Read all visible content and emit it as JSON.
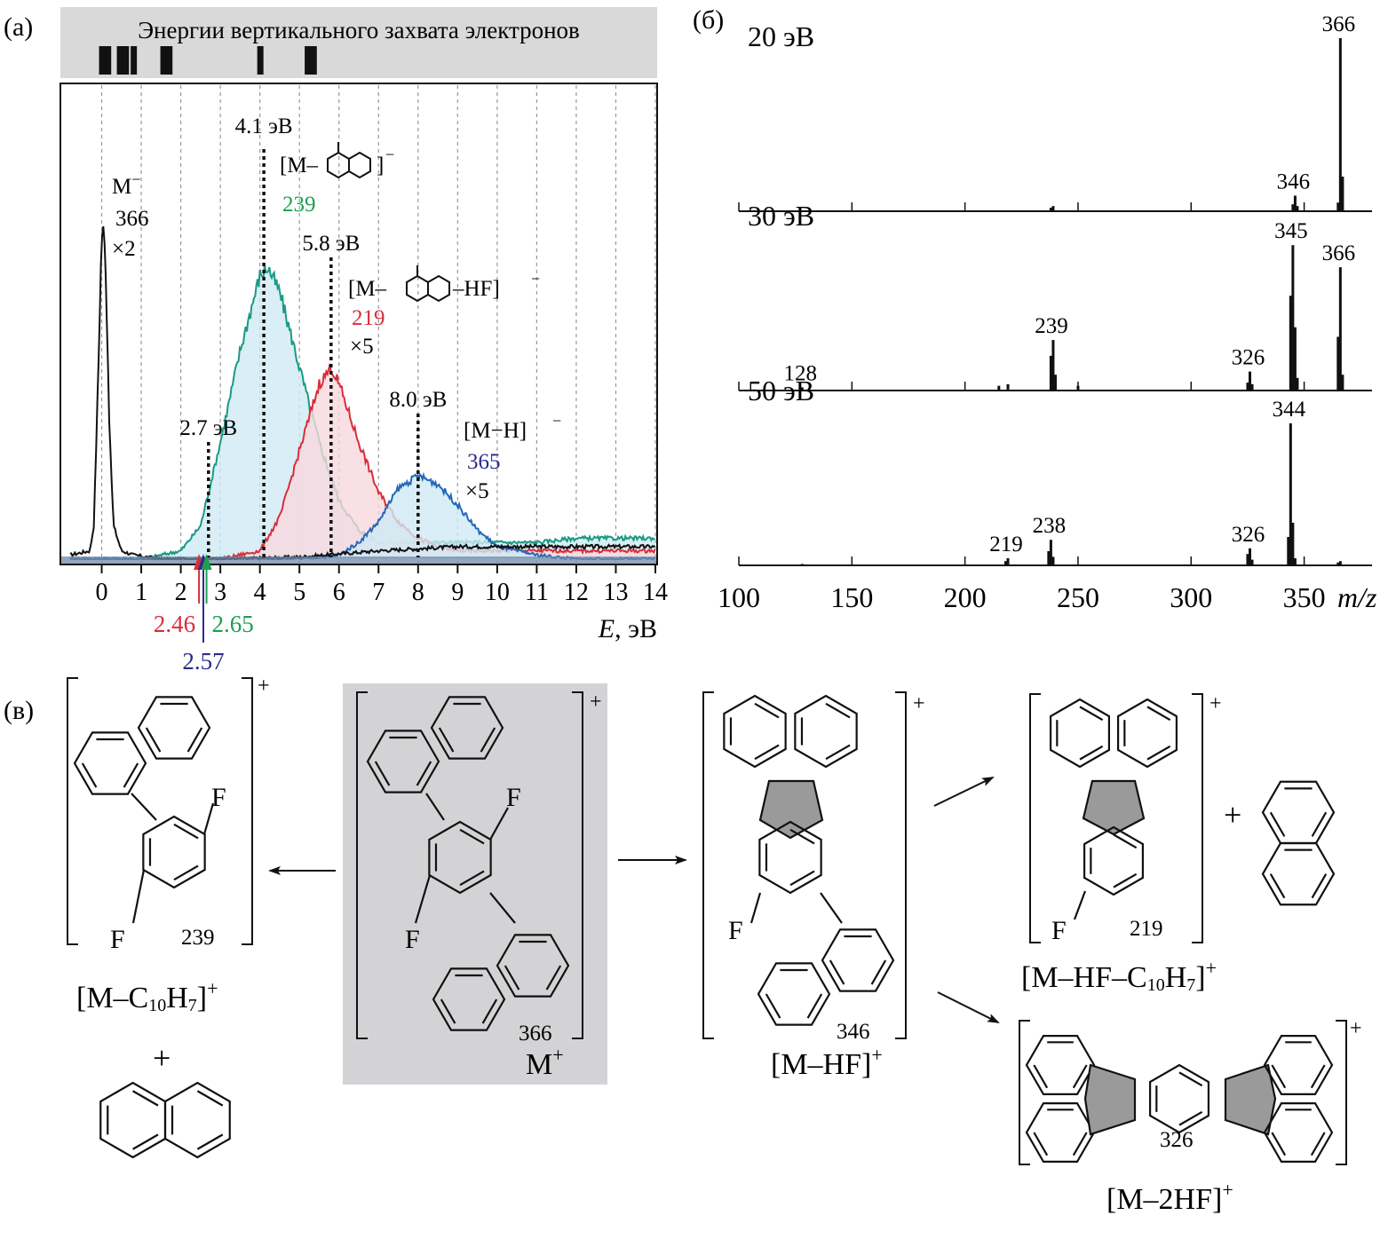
{
  "panel_labels": {
    "a": "(а)",
    "b": "(б)",
    "c": "(в)"
  },
  "colors": {
    "black": "#111111",
    "green": "#1a9a82",
    "green_label": "#1aa050",
    "red": "#d92d3a",
    "blue": "#2468b8",
    "navy": "#2c2a8c",
    "cyan_fill": "#cfeaf4",
    "pink_fill": "#f6d8de",
    "grey_band": "#d9d9d9",
    "grey_fill": "#c9c9c9"
  },
  "chart_data": [
    {
      "type": "line",
      "panel": "(а)",
      "header": "Энергии вертикального захвата электронов",
      "vae_bars": [
        0,
        0.15,
        0.45,
        0.6,
        0.8,
        1.55,
        1.7,
        4.0,
        5.2,
        5.35
      ],
      "xlabel": "E, эВ",
      "xlabel_italic": "E",
      "xlabel_unit": ", эВ",
      "xlim": [
        -1.0,
        14.0
      ],
      "xticks": [
        "0",
        "1",
        "2",
        "3",
        "4",
        "5",
        "6",
        "7",
        "8",
        "9",
        "10",
        "11",
        "12",
        "13",
        "14"
      ],
      "grid": "vertical dashed",
      "series": [
        {
          "name": "M⁻",
          "mz": "366",
          "scale": "×2",
          "color": "#111111",
          "x": [
            -0.8,
            -0.3,
            -0.2,
            -0.1,
            0.0,
            0.05,
            0.1,
            0.2,
            0.3,
            0.5,
            0.8,
            1.5,
            3,
            5,
            7,
            9,
            11,
            14
          ],
          "y": [
            0.01,
            0.02,
            0.08,
            0.4,
            0.78,
            0.79,
            0.7,
            0.3,
            0.08,
            0.02,
            0.01,
            0.0,
            0.0,
            0.005,
            0.02,
            0.03,
            0.03,
            0.03
          ]
        },
        {
          "name": "[M−C10H7]⁻",
          "mz": "239",
          "color": "#1a9a82",
          "x": [
            -0.8,
            1,
            2,
            2.5,
            3,
            3.5,
            4,
            4.2,
            4.5,
            5,
            5.5,
            6,
            6.5,
            7,
            8,
            9,
            10,
            11,
            12,
            14
          ],
          "y": [
            0.0,
            0.0,
            0.02,
            0.08,
            0.28,
            0.5,
            0.68,
            0.7,
            0.64,
            0.46,
            0.28,
            0.14,
            0.07,
            0.04,
            0.04,
            0.04,
            0.04,
            0.04,
            0.05,
            0.05
          ]
        },
        {
          "name": "[M−C10H7−HF]⁻",
          "mz": "219",
          "scale": "×5",
          "color": "#d92d3a",
          "x": [
            -0.8,
            2,
            3,
            4,
            4.5,
            5,
            5.5,
            5.8,
            6,
            6.5,
            7,
            7.5,
            8,
            8.5,
            9,
            10,
            11,
            12,
            14
          ],
          "y": [
            0.0,
            0.0,
            0.0,
            0.02,
            0.1,
            0.26,
            0.42,
            0.46,
            0.42,
            0.28,
            0.16,
            0.09,
            0.05,
            0.03,
            0.02,
            0.02,
            0.02,
            0.02,
            0.02
          ]
        },
        {
          "name": "[M−H]⁻",
          "mz": "365",
          "scale": "×5",
          "color": "#2468b8",
          "x": [
            -0.8,
            3,
            5,
            6,
            6.5,
            7,
            7.5,
            8,
            8.5,
            9,
            9.5,
            10,
            11,
            12,
            14
          ],
          "y": [
            0.0,
            0.0,
            0.0,
            0.01,
            0.04,
            0.09,
            0.17,
            0.2,
            0.18,
            0.13,
            0.07,
            0.03,
            0.01,
            0.0,
            0.0
          ]
        }
      ],
      "peak_markers": [
        {
          "x": 2.7,
          "label": "2.7 эВ"
        },
        {
          "x": 4.1,
          "label": "4.1 эВ"
        },
        {
          "x": 5.8,
          "label": "5.8 эВ"
        },
        {
          "x": 8.0,
          "label": "8.0 эВ"
        }
      ],
      "onset_arrows": [
        {
          "value": "2.46",
          "color": "#d92d3a"
        },
        {
          "value": "2.57",
          "color": "#2c2a8c"
        },
        {
          "value": "2.65",
          "color": "#1aa050"
        }
      ],
      "annotations": {
        "m_minus": "M",
        "m_minus_sup": "−",
        "m_minus_mz": "366",
        "m_minus_scale": "×2",
        "frag239_prefix": "[M–",
        "frag239_suffix": "]",
        "frag239_sup": "−",
        "frag239_mz": "239",
        "frag219_prefix": "[M–",
        "frag219_suffix": "–HF]",
        "frag219_sup": "−",
        "frag219_mz": "219",
        "frag219_scale": "×5",
        "frag365_text": "[M−H]",
        "frag365_sup": "−",
        "frag365_mz": "365",
        "frag365_scale": "×5"
      }
    },
    {
      "type": "bar",
      "panel": "(б)",
      "xlabel": "m/z",
      "xlim": [
        100,
        380
      ],
      "xticks": [
        "100",
        "150",
        "200",
        "250",
        "300",
        "350"
      ],
      "spectra": [
        {
          "energy": "20 эВ",
          "peaks": [
            [
              238,
              0.02
            ],
            [
              239,
              0.03
            ],
            [
              345,
              0.04
            ],
            [
              346,
              0.09
            ],
            [
              347,
              0.03
            ],
            [
              365,
              0.05
            ],
            [
              366,
              1.0
            ],
            [
              367,
              0.2
            ]
          ],
          "labels": [
            {
              "mz": 346,
              "text": "346"
            },
            {
              "mz": 366,
              "text": "366"
            }
          ]
        },
        {
          "energy": "30 эВ",
          "peaks": [
            [
              128,
              0.02
            ],
            [
              215,
              0.03
            ],
            [
              219,
              0.04
            ],
            [
              238,
              0.22
            ],
            [
              239,
              0.32
            ],
            [
              240,
              0.1
            ],
            [
              250,
              0.03
            ],
            [
              325,
              0.05
            ],
            [
              326,
              0.12
            ],
            [
              327,
              0.04
            ],
            [
              344,
              0.6
            ],
            [
              345,
              0.92
            ],
            [
              346,
              0.4
            ],
            [
              347,
              0.08
            ],
            [
              365,
              0.34
            ],
            [
              366,
              0.78
            ],
            [
              367,
              0.1
            ]
          ],
          "labels": [
            {
              "mz": 128,
              "text": "128"
            },
            {
              "mz": 239,
              "text": "239"
            },
            {
              "mz": 326,
              "text": "326"
            },
            {
              "mz": 345,
              "text": "345"
            },
            {
              "mz": 366,
              "text": "366"
            }
          ]
        },
        {
          "energy": "50 эВ",
          "peaks": [
            [
              128,
              0.01
            ],
            [
              218,
              0.03
            ],
            [
              219,
              0.05
            ],
            [
              237,
              0.1
            ],
            [
              238,
              0.18
            ],
            [
              239,
              0.06
            ],
            [
              325,
              0.08
            ],
            [
              326,
              0.12
            ],
            [
              327,
              0.04
            ],
            [
              343,
              0.2
            ],
            [
              344,
              1.0
            ],
            [
              345,
              0.3
            ],
            [
              346,
              0.05
            ],
            [
              365,
              0.02
            ],
            [
              366,
              0.03
            ]
          ],
          "labels": [
            {
              "mz": 219,
              "text": "219"
            },
            {
              "mz": 238,
              "text": "238"
            },
            {
              "mz": 326,
              "text": "326"
            },
            {
              "mz": 344,
              "text": "344"
            }
          ]
        }
      ]
    }
  ],
  "scheme": {
    "left": {
      "bracket_sup": "+",
      "mz": "239",
      "f1": "F",
      "f2": "F",
      "formula": "[M–C",
      "sub": "10",
      "h": "H",
      "hsub": "7",
      "close": "]",
      "sup": "+",
      "plus": "+"
    },
    "center": {
      "bracket_sup": "+",
      "mz": "366",
      "f1": "F",
      "f2": "F",
      "label": "M",
      "sup": "+"
    },
    "mid": {
      "bracket_sup": "+",
      "mz": "346",
      "f": "F",
      "label": "[M–HF]",
      "sup": "+"
    },
    "top_right": {
      "bracket_sup": "+",
      "mz": "219",
      "f": "F",
      "formula": "[M–HF–C",
      "sub": "10",
      "h": "H",
      "hsub": "7",
      "close": "]",
      "sup": "+",
      "plus": "+"
    },
    "bottom_right": {
      "bracket_sup": "+",
      "mz": "326",
      "label": "[M–2HF]",
      "sup": "+"
    }
  }
}
